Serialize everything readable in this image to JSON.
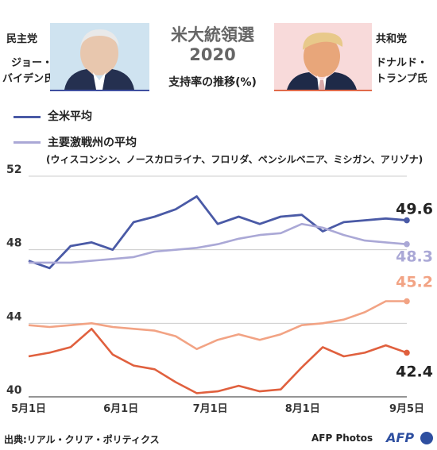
{
  "header": {
    "title_line1": "米大統領選",
    "title_line2": "2020",
    "subtitle": "支持率の推移(%)",
    "left_party": "民主党",
    "left_name_line1": "ジョー・",
    "left_name_line2": "バイデン氏",
    "right_party": "共和党",
    "right_name_line1": "ドナルド・",
    "right_name_line2": "トランプ氏"
  },
  "legend": {
    "item1": "全米平均",
    "item2": "主要激戦州の平均",
    "item2_note": "(ウィスコンシン、ノースカロライナ、フロリダ、ペンシルベニア、ミシガン、アリゾナ)"
  },
  "footer": {
    "source": "出典:リアル・クリア・ポリティクス",
    "credit": "AFP Photos",
    "logo": "AFP"
  },
  "colors": {
    "biden_national": "#4a5aa6",
    "biden_battleground": "#aaa8d6",
    "trump_national": "#e0603e",
    "trump_battleground": "#f2a384",
    "grid": "#cccccc"
  },
  "icons": {
    "biden_photo": "portrait-icon",
    "trump_photo": "portrait-icon",
    "logo": "afp-logo-icon"
  },
  "chart_data": {
    "type": "line",
    "title": "米大統領選 2020",
    "subtitle": "支持率の推移(%)",
    "xlabel": "",
    "ylabel": "",
    "ylim": [
      40,
      52
    ],
    "yticks": [
      "52",
      "48",
      "44",
      "40"
    ],
    "xtick_labels": [
      "5月1日",
      "6月1日",
      "7月1日",
      "8月1日",
      "9月5日"
    ],
    "xtick_days": [
      0,
      31,
      61,
      92,
      127
    ],
    "x_dates": [
      "5月1日",
      "5月8日",
      "5月15日",
      "5月22日",
      "5月29日",
      "6月5日",
      "6月12日",
      "6月19日",
      "6月26日",
      "7月3日",
      "7月10日",
      "7月17日",
      "7月24日",
      "7月31日",
      "8月7日",
      "8月14日",
      "8月21日",
      "8月28日",
      "9月5日"
    ],
    "grid": true,
    "legend_position": "top-left",
    "end_labels": [
      "49.6",
      "48.3",
      "45.2",
      "42.4"
    ],
    "series": [
      {
        "name": "全米平均",
        "candidate": "バイデン氏",
        "values": [
          47.4,
          47.0,
          48.2,
          48.4,
          48.0,
          49.5,
          49.8,
          50.2,
          50.9,
          49.4,
          49.8,
          49.4,
          49.8,
          49.9,
          49.0,
          49.5,
          49.6,
          49.7,
          49.6
        ]
      },
      {
        "name": "主要激戦州の平均",
        "candidate": "バイデン氏",
        "values": [
          47.3,
          47.3,
          47.3,
          47.4,
          47.5,
          47.6,
          47.9,
          48.0,
          48.1,
          48.3,
          48.6,
          48.8,
          48.9,
          49.4,
          49.2,
          48.8,
          48.5,
          48.4,
          48.3
        ]
      },
      {
        "name": "全米平均",
        "candidate": "トランプ氏",
        "values": [
          42.2,
          42.4,
          42.7,
          43.7,
          42.3,
          41.7,
          41.5,
          40.8,
          40.2,
          40.3,
          40.6,
          40.3,
          40.4,
          41.6,
          42.7,
          42.2,
          42.4,
          42.8,
          42.4
        ]
      },
      {
        "name": "主要激戦州の平均",
        "candidate": "トランプ氏",
        "values": [
          43.9,
          43.8,
          43.9,
          44.0,
          43.8,
          43.7,
          43.6,
          43.3,
          42.6,
          43.1,
          43.4,
          43.1,
          43.4,
          43.9,
          44.0,
          44.2,
          44.6,
          45.2,
          45.2
        ]
      }
    ]
  }
}
